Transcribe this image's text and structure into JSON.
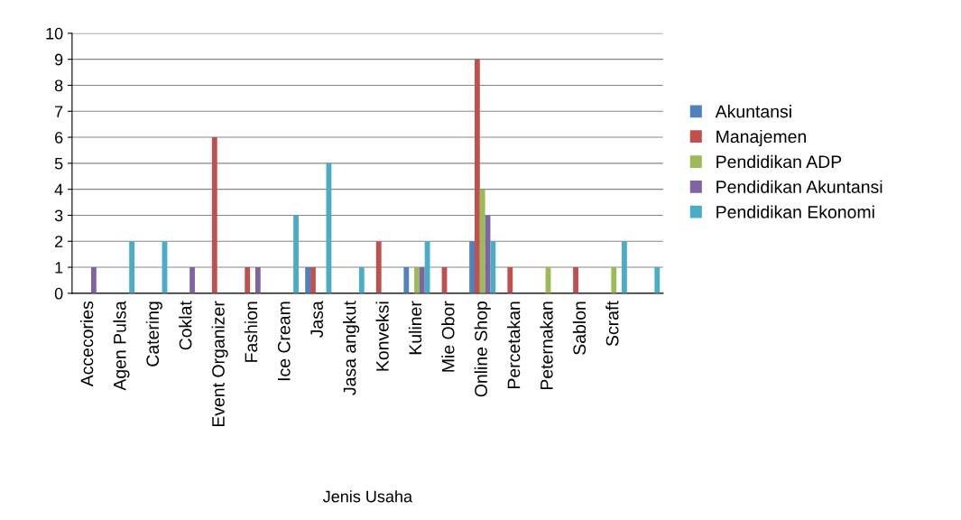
{
  "chart_data": {
    "type": "bar",
    "xlabel": "Jenis Usaha",
    "categories": [
      "Accecories",
      "Agen Pulsa",
      "Catering",
      "Coklat",
      "Event Organizer",
      "Fashion",
      "Ice Cream",
      "Jasa",
      "Jasa angkut",
      "Konveksi",
      "Kuliner",
      "Mie Obor",
      "Online Shop",
      "Percetakan",
      "Peternakan",
      "Sablon",
      "Scraft",
      null
    ],
    "series": [
      {
        "name": "Akuntansi",
        "color": "#4f81bd",
        "values": [
          null,
          null,
          null,
          null,
          null,
          null,
          null,
          1,
          null,
          null,
          1,
          null,
          2,
          null,
          null,
          null,
          null,
          null
        ]
      },
      {
        "name": "Manajemen",
        "color": "#c0504d",
        "values": [
          null,
          null,
          null,
          null,
          6,
          1,
          null,
          1,
          null,
          2,
          null,
          1,
          9,
          1,
          null,
          1,
          null,
          null
        ]
      },
      {
        "name": "Pendidikan ADP",
        "color": "#9bbb59",
        "values": [
          null,
          null,
          null,
          null,
          null,
          null,
          null,
          null,
          null,
          null,
          1,
          null,
          4,
          null,
          1,
          null,
          1,
          null
        ]
      },
      {
        "name": "Pendidikan Akuntansi",
        "color": "#8064a2",
        "values": [
          1,
          null,
          null,
          1,
          null,
          1,
          null,
          null,
          null,
          null,
          1,
          null,
          3,
          null,
          null,
          null,
          null,
          null
        ]
      },
      {
        "name": "Pendidikan Ekonomi",
        "color": "#4bacc6",
        "values": [
          null,
          2,
          2,
          null,
          null,
          null,
          3,
          5,
          1,
          null,
          2,
          null,
          2,
          null,
          null,
          null,
          2,
          1
        ]
      }
    ],
    "ylim": [
      0,
      10
    ],
    "yticks": [
      0,
      1,
      2,
      3,
      4,
      5,
      6,
      7,
      8,
      9,
      10
    ],
    "grid": "y",
    "legend": "right"
  }
}
